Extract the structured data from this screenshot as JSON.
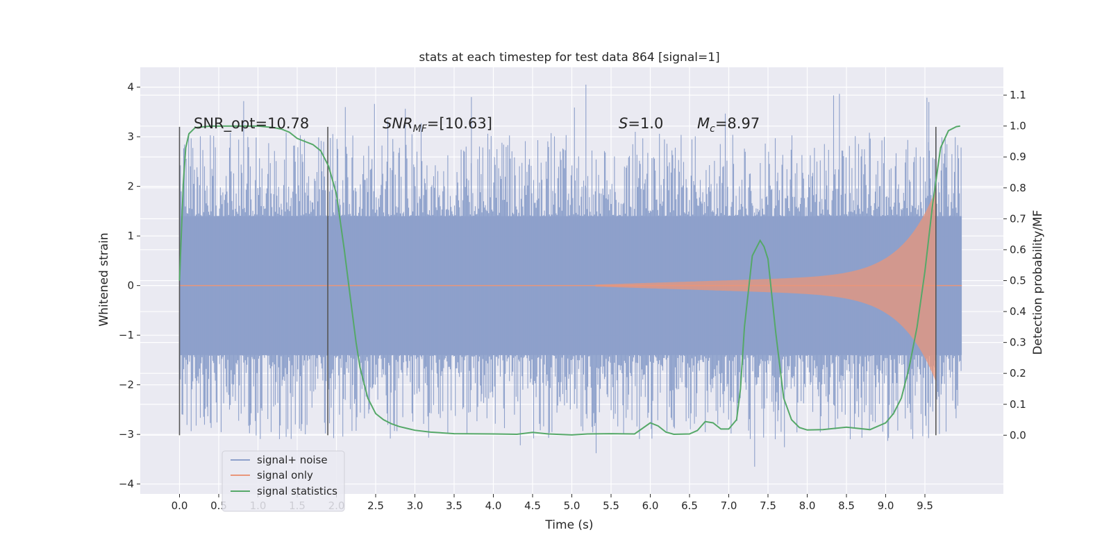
{
  "chart_data": {
    "type": "line",
    "title": "stats at each timestep for test data 864 [signal=1]",
    "xlabel": "Time (s)",
    "ylabel_left": "Whitened strain",
    "ylabel_right": "Detection probability/MF",
    "xlim": [
      -0.5,
      10.5
    ],
    "ylim_left": [
      -4.2,
      4.4
    ],
    "ylim_right": [
      -0.19,
      1.19
    ],
    "x_ticks": [
      0.0,
      0.5,
      1.0,
      1.5,
      2.0,
      2.5,
      3.0,
      3.5,
      4.0,
      4.5,
      5.0,
      5.5,
      6.0,
      6.5,
      7.0,
      7.5,
      8.0,
      8.5,
      9.0,
      9.5
    ],
    "x_tick_labels": [
      "0.0",
      "0.5",
      "1.0",
      "1.5",
      "2.0",
      "2.5",
      "3.0",
      "3.5",
      "4.0",
      "4.5",
      "5.0",
      "5.5",
      "6.0",
      "6.5",
      "7.0",
      "7.5",
      "8.0",
      "8.5",
      "9.0",
      "9.5"
    ],
    "y_left_ticks": [
      4,
      3,
      2,
      1,
      0,
      -1,
      -2,
      -3,
      -4
    ],
    "y_left_tick_labels": [
      "4",
      "3",
      "2",
      "1",
      "0",
      "−1",
      "−2",
      "−3",
      "−4"
    ],
    "y_right_ticks": [
      1.1,
      1.0,
      0.9,
      0.8,
      0.7,
      0.6,
      0.5,
      0.4,
      0.3,
      0.2,
      0.1,
      0.0
    ],
    "y_right_tick_labels": [
      "1.1",
      "1.0",
      "0.9",
      "0.8",
      "0.7",
      "0.6",
      "0.5",
      "0.4",
      "0.3",
      "0.2",
      "0.1",
      "0.0"
    ],
    "grid": true,
    "legend": {
      "placement": "lower-left",
      "entries": [
        "signal+ noise",
        "signal only",
        "signal statistics"
      ]
    },
    "annotations": {
      "snr_opt": "SNR_opt=10.78",
      "snr_mf_main": "SNR",
      "snr_mf_sub": "MF",
      "snr_mf_value": "=[10.63]",
      "s_main": "S",
      "s_value": "=1.0",
      "mc_main": "M",
      "mc_sub": "c",
      "mc_value": "=8.97"
    },
    "vertical_markers_x": [
      0.0,
      1.89,
      9.64
    ],
    "series": [
      {
        "name": "signal+ noise",
        "color": "#8da0cb",
        "axis": "left",
        "x_range": [
          0.0,
          9.97
        ],
        "envelope_core": 1.4,
        "max_peak": 4.05,
        "min_peak": -3.65
      },
      {
        "name": "signal only",
        "color": "#e9967a",
        "axis": "left",
        "chirp_start": 5.3,
        "merger_x": 9.64,
        "peak_amplitude": 1.7
      },
      {
        "name": "signal statistics",
        "color": "#55a868",
        "axis": "right",
        "x": [
          0.0,
          0.05,
          0.08,
          0.12,
          0.2,
          0.4,
          0.8,
          1.0,
          1.2,
          1.3,
          1.4,
          1.5,
          1.6,
          1.7,
          1.8,
          1.9,
          2.0,
          2.1,
          2.2,
          2.25,
          2.3,
          2.35,
          2.4,
          2.5,
          2.6,
          2.7,
          2.8,
          2.9,
          3.0,
          3.2,
          3.5,
          4.0,
          4.3,
          4.5,
          4.7,
          5.0,
          5.2,
          5.5,
          5.8,
          6.0,
          6.1,
          6.2,
          6.3,
          6.5,
          6.6,
          6.7,
          6.8,
          6.9,
          7.0,
          7.1,
          7.15,
          7.2,
          7.3,
          7.4,
          7.45,
          7.5,
          7.6,
          7.7,
          7.8,
          7.9,
          8.0,
          8.2,
          8.5,
          8.8,
          9.0,
          9.1,
          9.2,
          9.3,
          9.4,
          9.5,
          9.6,
          9.7,
          9.8,
          9.9,
          9.95
        ],
        "y": [
          0.5,
          0.82,
          0.93,
          0.975,
          0.995,
          1.0,
          1.0,
          1.0,
          0.995,
          0.99,
          0.98,
          0.96,
          0.95,
          0.94,
          0.92,
          0.87,
          0.78,
          0.6,
          0.4,
          0.3,
          0.22,
          0.17,
          0.12,
          0.07,
          0.05,
          0.037,
          0.028,
          0.022,
          0.016,
          0.01,
          0.005,
          0.004,
          0.003,
          0.009,
          0.004,
          0.001,
          0.004,
          0.005,
          0.004,
          0.04,
          0.03,
          0.01,
          0.003,
          0.004,
          0.015,
          0.044,
          0.04,
          0.02,
          0.02,
          0.05,
          0.15,
          0.35,
          0.58,
          0.63,
          0.61,
          0.57,
          0.33,
          0.12,
          0.05,
          0.025,
          0.017,
          0.018,
          0.026,
          0.018,
          0.04,
          0.07,
          0.12,
          0.22,
          0.35,
          0.53,
          0.75,
          0.93,
          0.985,
          0.998,
          1.0
        ]
      }
    ]
  }
}
